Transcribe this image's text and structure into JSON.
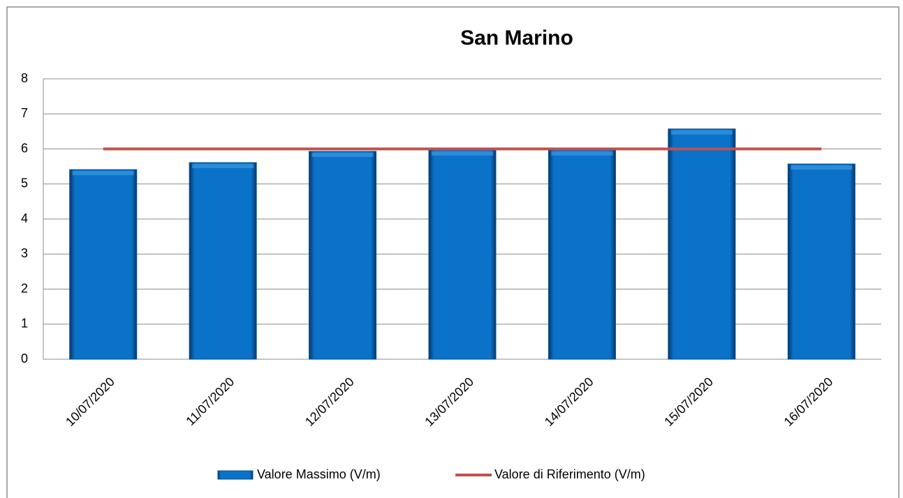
{
  "chart_data": {
    "type": "bar",
    "title": "San Marino",
    "categories": [
      "10/07/2020",
      "11/07/2020",
      "12/07/2020",
      "13/07/2020",
      "14/07/2020",
      "15/07/2020",
      "16/07/2020"
    ],
    "series": [
      {
        "name": "Valore Massimo (V/m)",
        "type": "bar",
        "color": "#0a72c9",
        "values": [
          5.41,
          5.61,
          5.93,
          5.97,
          5.97,
          6.57,
          5.57
        ]
      },
      {
        "name": "Valore di Riferimento (V/m)",
        "type": "line",
        "color": "#c0504d",
        "values": [
          6,
          6,
          6,
          6,
          6,
          6,
          6
        ]
      }
    ],
    "ylim": [
      0,
      8
    ],
    "yticks": [
      0,
      1,
      2,
      3,
      4,
      5,
      6,
      7,
      8
    ],
    "grid": true,
    "legend": "bottom"
  }
}
